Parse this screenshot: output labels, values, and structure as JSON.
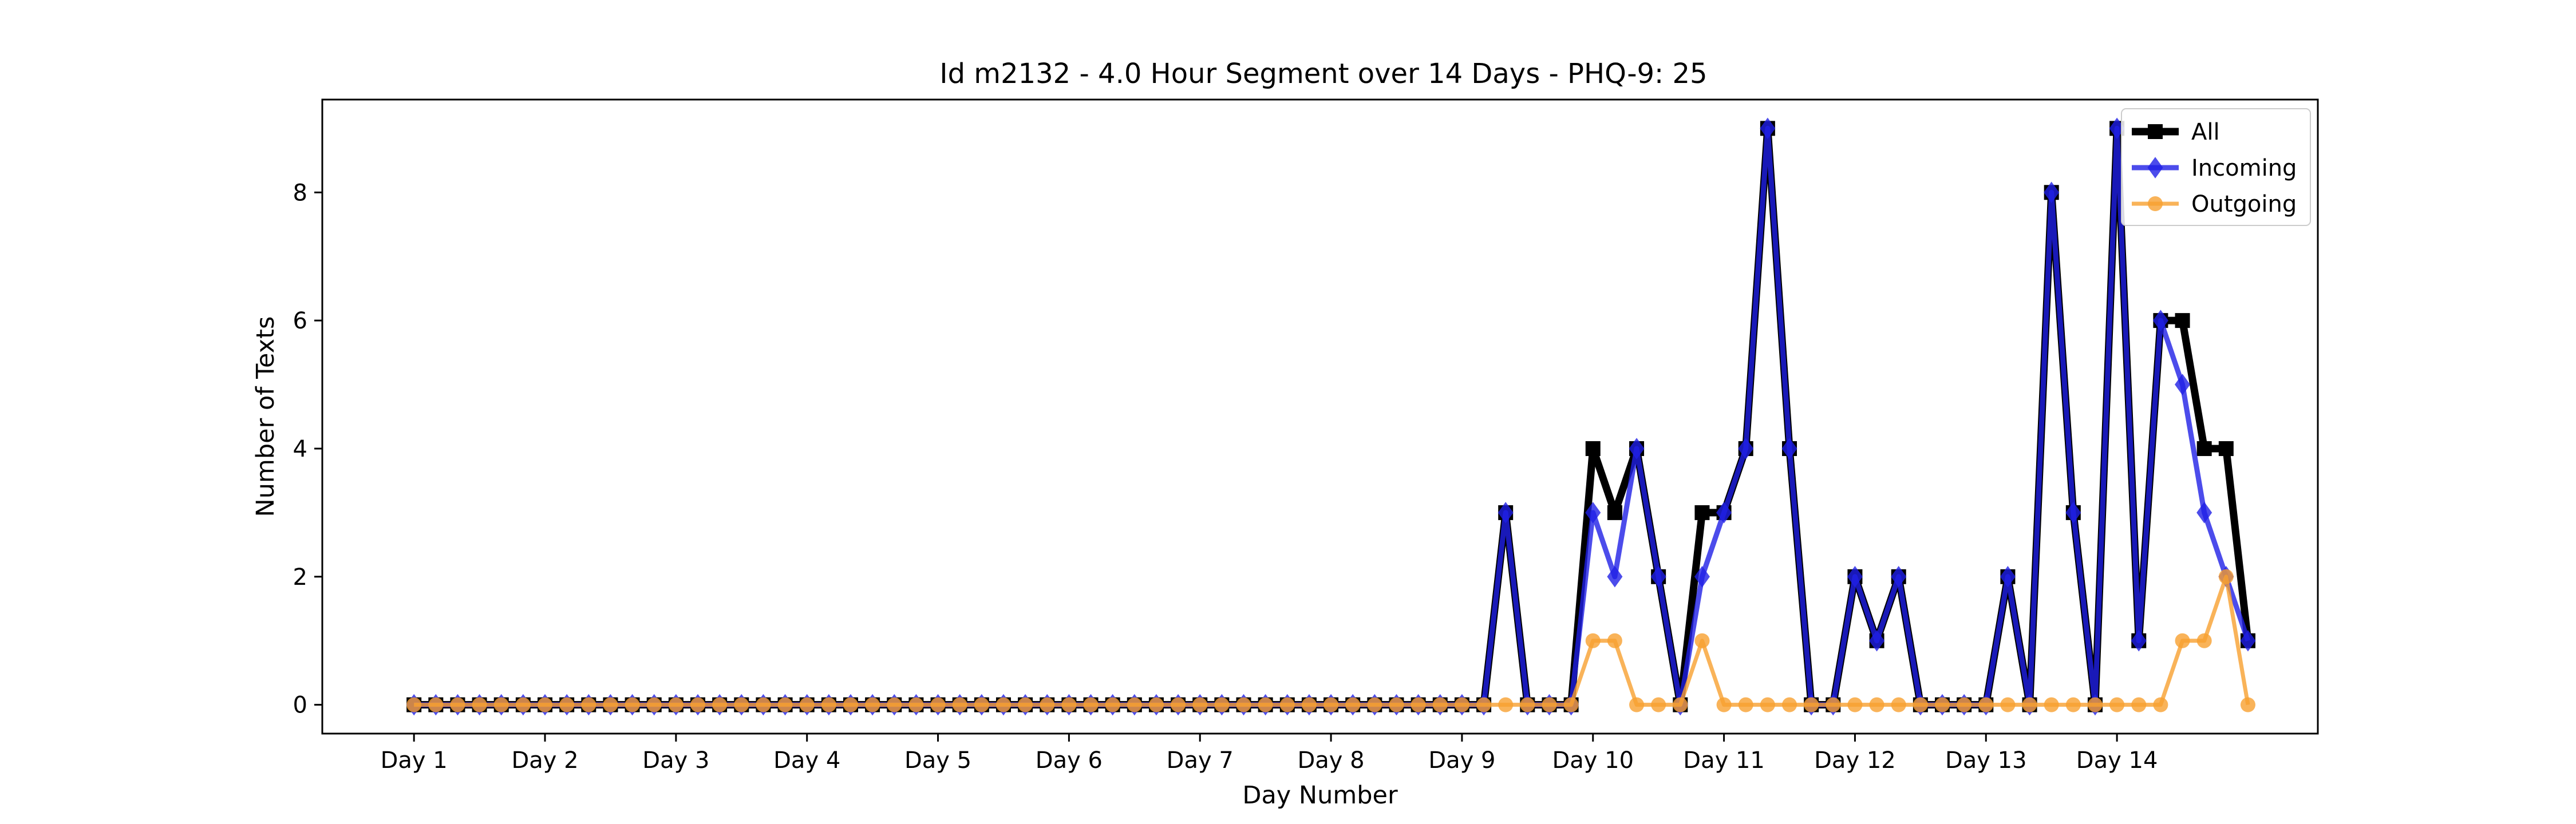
{
  "chart_data": {
    "type": "line",
    "title": "Id m2132 - 4.0 Hour Segment over 14 Days - PHQ-9: 25",
    "xlabel": "Day Number",
    "ylabel": "Number of Texts",
    "x_tick_labels": [
      "Day 1",
      "Day 2",
      "Day 3",
      "Day 4",
      "Day 5",
      "Day 6",
      "Day 7",
      "Day 8",
      "Day 9",
      "Day 10",
      "Day 11",
      "Day 12",
      "Day 13",
      "Day 14"
    ],
    "x_ticks_at_index": [
      0,
      6,
      12,
      18,
      24,
      30,
      36,
      42,
      48,
      54,
      60,
      66,
      72,
      78
    ],
    "y_ticks": [
      0,
      2,
      4,
      6,
      8
    ],
    "xlim": [
      -4.2,
      87.2
    ],
    "ylim": [
      -0.45,
      9.45
    ],
    "grid": false,
    "legend_position": "top-right",
    "series": [
      {
        "name": "All",
        "color": "#000000",
        "marker": "square",
        "values": [
          0,
          0,
          0,
          0,
          0,
          0,
          0,
          0,
          0,
          0,
          0,
          0,
          0,
          0,
          0,
          0,
          0,
          0,
          0,
          0,
          0,
          0,
          0,
          0,
          0,
          0,
          0,
          0,
          0,
          0,
          0,
          0,
          0,
          0,
          0,
          0,
          0,
          0,
          0,
          0,
          0,
          0,
          0,
          0,
          0,
          0,
          0,
          0,
          0,
          0,
          3,
          0,
          0,
          0,
          4,
          3,
          4,
          2,
          0,
          3,
          3,
          4,
          9,
          4,
          0,
          0,
          2,
          1,
          2,
          0,
          0,
          0,
          0,
          2,
          0,
          8,
          3,
          0,
          9,
          1,
          6,
          6,
          4,
          4,
          1
        ]
      },
      {
        "name": "Incoming",
        "color": "#1f1fe6",
        "marker": "diamond",
        "values": [
          0,
          0,
          0,
          0,
          0,
          0,
          0,
          0,
          0,
          0,
          0,
          0,
          0,
          0,
          0,
          0,
          0,
          0,
          0,
          0,
          0,
          0,
          0,
          0,
          0,
          0,
          0,
          0,
          0,
          0,
          0,
          0,
          0,
          0,
          0,
          0,
          0,
          0,
          0,
          0,
          0,
          0,
          0,
          0,
          0,
          0,
          0,
          0,
          0,
          0,
          3,
          0,
          0,
          0,
          3,
          2,
          4,
          2,
          0,
          2,
          3,
          4,
          9,
          4,
          0,
          0,
          2,
          1,
          2,
          0,
          0,
          0,
          0,
          2,
          0,
          8,
          3,
          0,
          9,
          1,
          6,
          5,
          3,
          2,
          1
        ]
      },
      {
        "name": "Outgoing",
        "color": "#f7a030",
        "marker": "circle",
        "values": [
          0,
          0,
          0,
          0,
          0,
          0,
          0,
          0,
          0,
          0,
          0,
          0,
          0,
          0,
          0,
          0,
          0,
          0,
          0,
          0,
          0,
          0,
          0,
          0,
          0,
          0,
          0,
          0,
          0,
          0,
          0,
          0,
          0,
          0,
          0,
          0,
          0,
          0,
          0,
          0,
          0,
          0,
          0,
          0,
          0,
          0,
          0,
          0,
          0,
          0,
          0,
          0,
          0,
          0,
          1,
          1,
          0,
          0,
          0,
          1,
          0,
          0,
          0,
          0,
          0,
          0,
          0,
          0,
          0,
          0,
          0,
          0,
          0,
          0,
          0,
          0,
          0,
          0,
          0,
          0,
          0,
          1,
          1,
          2,
          0
        ]
      }
    ]
  }
}
